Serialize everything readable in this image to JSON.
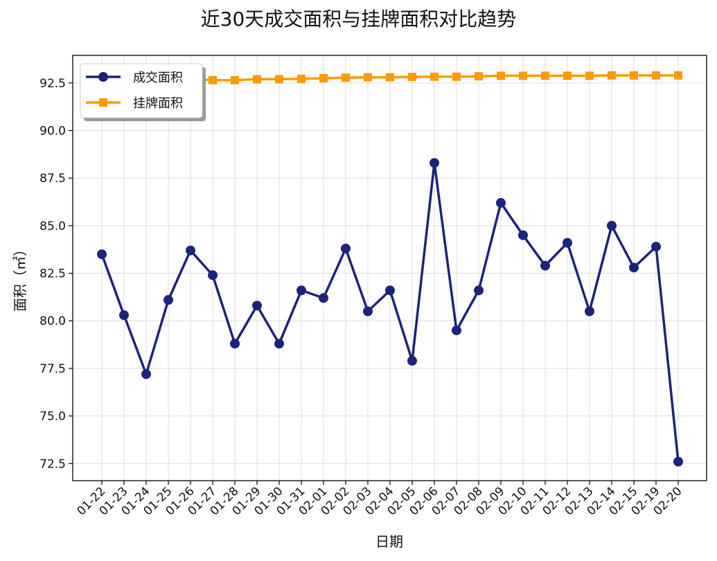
{
  "chart_data": {
    "type": "line",
    "title": "近30天成交面积与挂牌面积对比趋势",
    "xlabel": "日期",
    "ylabel": "面积（㎡）",
    "categories": [
      "01-22",
      "01-23",
      "01-24",
      "01-25",
      "01-26",
      "01-27",
      "01-28",
      "01-29",
      "01-30",
      "01-31",
      "02-01",
      "02-02",
      "02-03",
      "02-04",
      "02-05",
      "02-06",
      "02-07",
      "02-08",
      "02-09",
      "02-10",
      "02-11",
      "02-12",
      "02-13",
      "02-14",
      "02-15",
      "02-19",
      "02-20"
    ],
    "series": [
      {
        "name": "成交面积",
        "color": "#1c237a",
        "marker": "circle",
        "values": [
          83.5,
          80.3,
          77.2,
          81.1,
          83.7,
          82.4,
          78.8,
          80.8,
          78.8,
          81.6,
          81.2,
          83.8,
          80.5,
          81.6,
          77.9,
          88.3,
          79.5,
          81.6,
          86.2,
          84.5,
          82.9,
          84.1,
          80.5,
          85.0,
          82.8,
          83.9,
          72.6
        ]
      },
      {
        "name": "挂牌面积",
        "color": "#ff9a00",
        "marker": "square",
        "values": [
          92.7,
          92.7,
          92.7,
          92.7,
          92.7,
          92.65,
          92.65,
          92.7,
          92.7,
          92.72,
          92.75,
          92.78,
          92.8,
          92.8,
          92.82,
          92.83,
          92.83,
          92.85,
          92.88,
          92.88,
          92.88,
          92.88,
          92.88,
          92.9,
          92.9,
          92.9,
          92.9
        ]
      }
    ],
    "yticks": [
      "72.5",
      "75.0",
      "77.5",
      "80.0",
      "82.5",
      "85.0",
      "87.5",
      "90.0",
      "92.5"
    ],
    "ylim": [
      71.6,
      93.95
    ],
    "grid": true,
    "legend_position": "top-left"
  }
}
